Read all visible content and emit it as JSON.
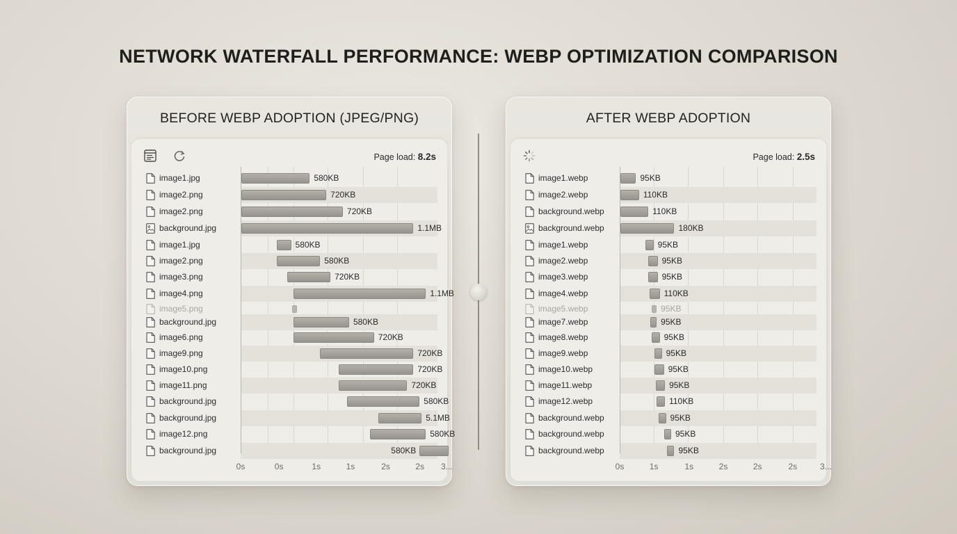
{
  "title": "NETWORK WATERFALL PERFORMANCE: WEBP OPTIMIZATION COMPARISON",
  "panels": [
    {
      "heading": "BEFORE WEBP ADOPTION (JPEG/PNG)",
      "load_label": "Page load:",
      "load_value": "8.2s",
      "toolbar_icons": [
        "network-panel-icon",
        "reload-icon"
      ],
      "ticks": [
        "0s",
        "0s",
        "1s",
        "1s",
        "2s",
        "2s",
        "3..."
      ],
      "rows": [
        {
          "file": "image1.jpg",
          "icon": "file-icon",
          "start": 0.0,
          "end": 0.33,
          "size": "580KB"
        },
        {
          "file": "image2.png",
          "icon": "file-icon",
          "start": 0.0,
          "end": 0.41,
          "size": "720KB"
        },
        {
          "file": "image2.png",
          "icon": "file-icon",
          "start": 0.0,
          "end": 0.49,
          "size": "720KB"
        },
        {
          "file": "background.jpg",
          "icon": "image-file-icon",
          "start": 0.0,
          "end": 0.83,
          "size": "1.1MB"
        },
        {
          "file": "image1.jpg",
          "icon": "file-icon",
          "start": 0.17,
          "end": 0.24,
          "size": "580KB"
        },
        {
          "file": "image2.png",
          "icon": "file-icon",
          "start": 0.17,
          "end": 0.38,
          "size": "580KB"
        },
        {
          "file": "image3.png",
          "icon": "file-icon",
          "start": 0.22,
          "end": 0.43,
          "size": "720KB"
        },
        {
          "file": "image4.png",
          "icon": "file-icon",
          "start": 0.25,
          "end": 0.89,
          "size": "1.1MB"
        },
        {
          "file": "image5.png",
          "icon": "file-icon",
          "start": 0.245,
          "end": 0.27,
          "size": "",
          "dim": true
        },
        {
          "file": "background.jpg",
          "icon": "file-icon",
          "start": 0.25,
          "end": 0.52,
          "size": "580KB"
        },
        {
          "file": "image6.png",
          "icon": "file-icon",
          "start": 0.25,
          "end": 0.64,
          "size": "720KB"
        },
        {
          "file": "image9.png",
          "icon": "file-icon",
          "start": 0.38,
          "end": 0.83,
          "size": "720KB"
        },
        {
          "file": "image10.png",
          "icon": "file-icon",
          "start": 0.47,
          "end": 0.83,
          "size": "720KB"
        },
        {
          "file": "image11.png",
          "icon": "file-icon",
          "start": 0.47,
          "end": 0.8,
          "size": "720KB"
        },
        {
          "file": "background.jpg",
          "icon": "file-icon",
          "start": 0.51,
          "end": 0.86,
          "size": "580KB"
        },
        {
          "file": "background.jpg",
          "icon": "file-icon",
          "start": 0.66,
          "end": 0.87,
          "size": "5.1MB"
        },
        {
          "file": "image12.png",
          "icon": "file-icon",
          "start": 0.62,
          "end": 0.89,
          "size": "580KB"
        },
        {
          "file": "background.jpg",
          "icon": "file-icon",
          "start": 0.86,
          "end": 1.0,
          "size": "580KB",
          "label_before": true
        }
      ]
    },
    {
      "heading": "AFTER WEBP ADOPTION",
      "load_label": "Page load:",
      "load_value": "2.5s",
      "toolbar_icons": [
        "loading-spinner-icon"
      ],
      "ticks": [
        "0s",
        "1s",
        "1s",
        "2s",
        "2s",
        "2s",
        "3..."
      ],
      "rows": [
        {
          "file": "image1.webp",
          "icon": "file-icon",
          "start": 0.0,
          "end": 0.075,
          "size": "95KB"
        },
        {
          "file": "image2.webp",
          "icon": "file-icon",
          "start": 0.0,
          "end": 0.09,
          "size": "110KB"
        },
        {
          "file": "background.webp",
          "icon": "file-icon",
          "start": 0.0,
          "end": 0.135,
          "size": "110KB"
        },
        {
          "file": "background.webp",
          "icon": "image-file-icon",
          "start": 0.0,
          "end": 0.26,
          "size": "180KB"
        },
        {
          "file": "image1.webp",
          "icon": "file-icon",
          "start": 0.12,
          "end": 0.16,
          "size": "95KB"
        },
        {
          "file": "image2.webp",
          "icon": "file-icon",
          "start": 0.135,
          "end": 0.18,
          "size": "95KB"
        },
        {
          "file": "image3.webp",
          "icon": "file-icon",
          "start": 0.135,
          "end": 0.18,
          "size": "95KB"
        },
        {
          "file": "image4.webp",
          "icon": "file-icon",
          "start": 0.14,
          "end": 0.19,
          "size": "110KB"
        },
        {
          "file": "image5.webp",
          "icon": "file-icon",
          "start": 0.15,
          "end": 0.175,
          "size": "95KB",
          "dim": true
        },
        {
          "file": "image7.webp",
          "icon": "file-icon",
          "start": 0.145,
          "end": 0.175,
          "size": "95KB"
        },
        {
          "file": "image8.webp",
          "icon": "file-icon",
          "start": 0.15,
          "end": 0.19,
          "size": "95KB"
        },
        {
          "file": "image9.webp",
          "icon": "file-icon",
          "start": 0.165,
          "end": 0.2,
          "size": "95KB"
        },
        {
          "file": "image10.webp",
          "icon": "file-icon",
          "start": 0.165,
          "end": 0.21,
          "size": "95KB"
        },
        {
          "file": "image11.webp",
          "icon": "file-icon",
          "start": 0.17,
          "end": 0.215,
          "size": "95KB"
        },
        {
          "file": "image12.webp",
          "icon": "file-icon",
          "start": 0.175,
          "end": 0.215,
          "size": "110KB"
        },
        {
          "file": "background.webp",
          "icon": "file-icon",
          "start": 0.185,
          "end": 0.22,
          "size": "95KB"
        },
        {
          "file": "background.webp",
          "icon": "file-icon",
          "start": 0.21,
          "end": 0.245,
          "size": "95KB"
        },
        {
          "file": "background.webp",
          "icon": "file-icon",
          "start": 0.225,
          "end": 0.26,
          "size": "95KB"
        }
      ]
    }
  ]
}
